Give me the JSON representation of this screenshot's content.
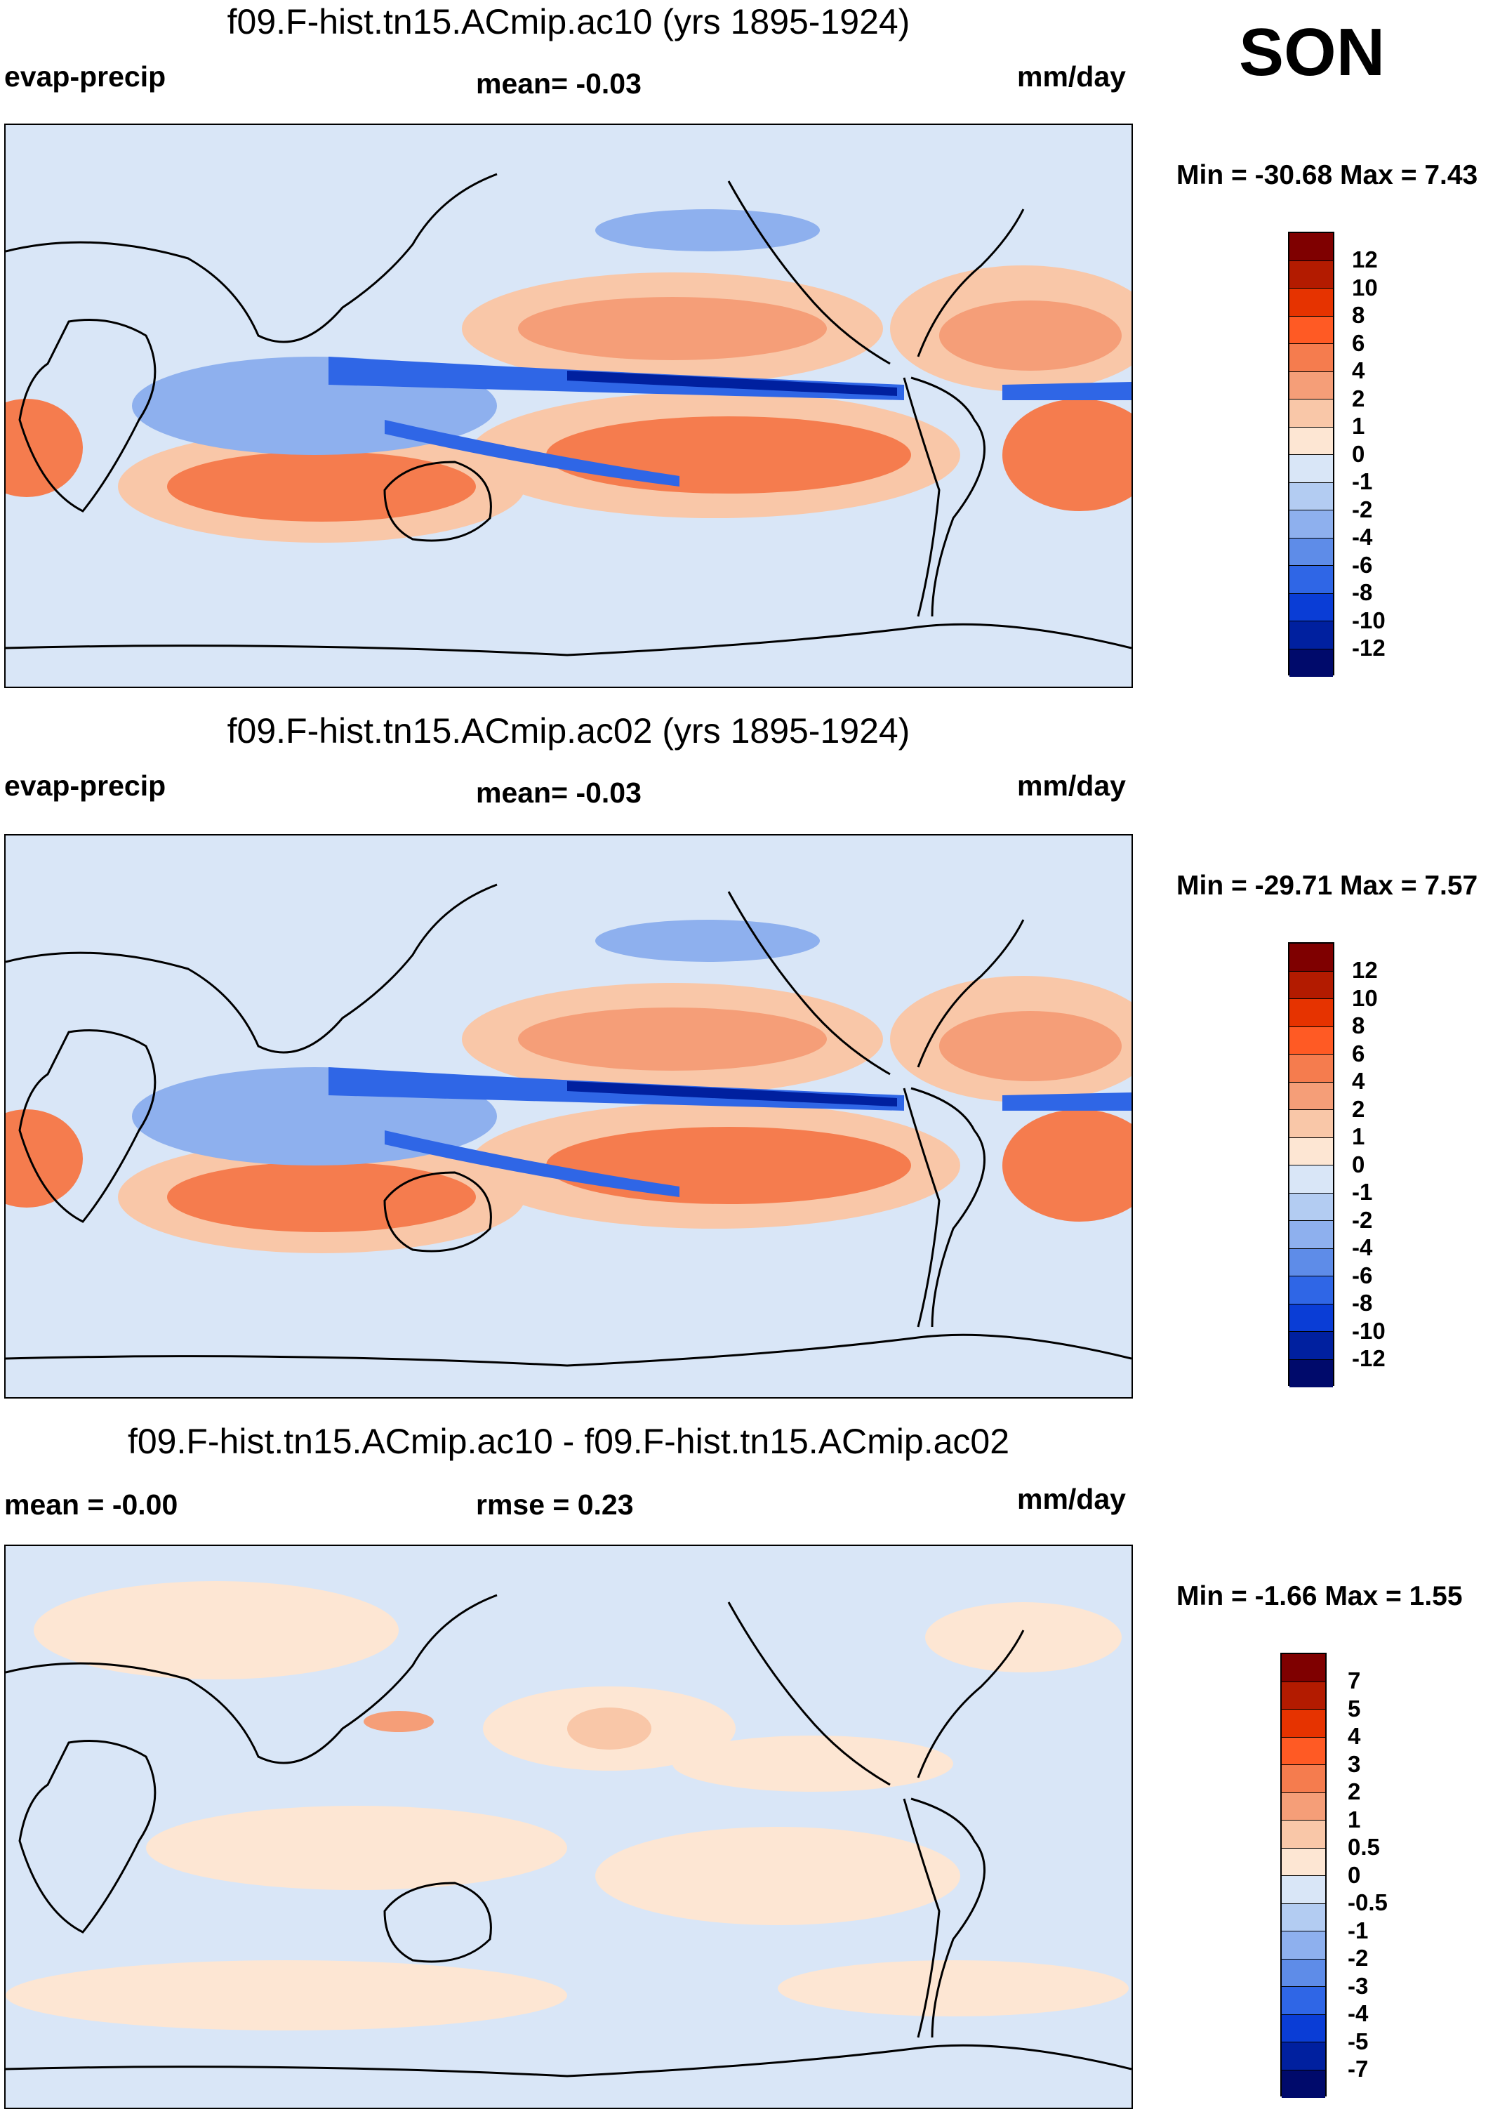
{
  "season": "SON",
  "units": "mm/day",
  "panels": [
    {
      "title": "f09.F-hist.tn15.ACmip.ac10 (yrs 1895-1924)",
      "left_label": "evap-precip",
      "mid_label": "mean=  -0.03",
      "right_label": "mm/day",
      "minmax": "Min = -30.68 Max =   7.43",
      "colorbar": [
        "12",
        "10",
        "8",
        "6",
        "4",
        "2",
        "1",
        "0",
        "-1",
        "-2",
        "-4",
        "-6",
        "-8",
        "-10",
        "-12"
      ]
    },
    {
      "title": "f09.F-hist.tn15.ACmip.ac02 (yrs 1895-1924)",
      "left_label": "evap-precip",
      "mid_label": "mean=  -0.03",
      "right_label": "mm/day",
      "minmax": "Min = -29.71 Max =   7.57",
      "colorbar": [
        "12",
        "10",
        "8",
        "6",
        "4",
        "2",
        "1",
        "0",
        "-1",
        "-2",
        "-4",
        "-6",
        "-8",
        "-10",
        "-12"
      ]
    },
    {
      "title": "f09.F-hist.tn15.ACmip.ac10 - f09.F-hist.tn15.ACmip.ac02",
      "left_label": "mean =  -0.00",
      "mid_label": "rmse =   0.23",
      "right_label": "mm/day",
      "minmax": "Min =  -1.66 Max =   1.55",
      "colorbar": [
        "7",
        "5",
        "4",
        "3",
        "2",
        "1",
        "0.5",
        "0",
        "-0.5",
        "-1",
        "-2",
        "-3",
        "-4",
        "-5",
        "-7"
      ]
    }
  ],
  "colors": {
    "scale": [
      "#7f0000",
      "#b31b00",
      "#e63300",
      "#ff5a24",
      "#f57c4e",
      "#f59e78",
      "#f9c7a8",
      "#fde6d3",
      "#d9e6f7",
      "#b3ccf2",
      "#8eb0ee",
      "#5e8ce8",
      "#2f66e6",
      "#0a3dd6",
      "#00209f",
      "#000a6b"
    ]
  }
}
